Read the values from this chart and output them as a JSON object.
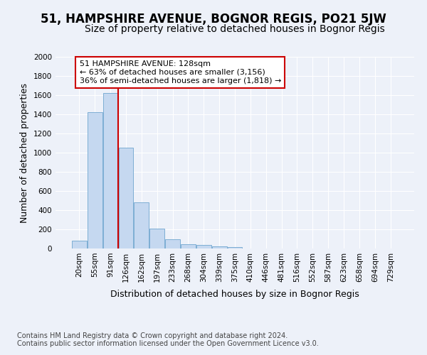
{
  "title": "51, HAMPSHIRE AVENUE, BOGNOR REGIS, PO21 5JW",
  "subtitle": "Size of property relative to detached houses in Bognor Regis",
  "xlabel": "Distribution of detached houses by size in Bognor Regis",
  "ylabel": "Number of detached properties",
  "categories": [
    "20sqm",
    "55sqm",
    "91sqm",
    "126sqm",
    "162sqm",
    "197sqm",
    "233sqm",
    "268sqm",
    "304sqm",
    "339sqm",
    "375sqm",
    "410sqm",
    "446sqm",
    "481sqm",
    "516sqm",
    "552sqm",
    "587sqm",
    "623sqm",
    "658sqm",
    "694sqm",
    "729sqm"
  ],
  "values": [
    80,
    1420,
    1620,
    1050,
    480,
    205,
    100,
    48,
    35,
    22,
    12,
    0,
    0,
    0,
    0,
    0,
    0,
    0,
    0,
    0,
    0
  ],
  "bar_color": "#c5d8f0",
  "bar_edge_color": "#7daed4",
  "vline_x": 3,
  "vline_color": "#cc0000",
  "annotation_text": "51 HAMPSHIRE AVENUE: 128sqm\n← 63% of detached houses are smaller (3,156)\n36% of semi-detached houses are larger (1,818) →",
  "annotation_box_color": "#ffffff",
  "annotation_box_edge": "#cc0000",
  "ylim": [
    0,
    2000
  ],
  "yticks": [
    0,
    200,
    400,
    600,
    800,
    1000,
    1200,
    1400,
    1600,
    1800,
    2000
  ],
  "footer": "Contains HM Land Registry data © Crown copyright and database right 2024.\nContains public sector information licensed under the Open Government Licence v3.0.",
  "background_color": "#edf1f9",
  "plot_background": "#edf1f9",
  "grid_color": "#ffffff",
  "title_fontsize": 12,
  "subtitle_fontsize": 10,
  "label_fontsize": 9,
  "tick_fontsize": 7.5,
  "footer_fontsize": 7
}
